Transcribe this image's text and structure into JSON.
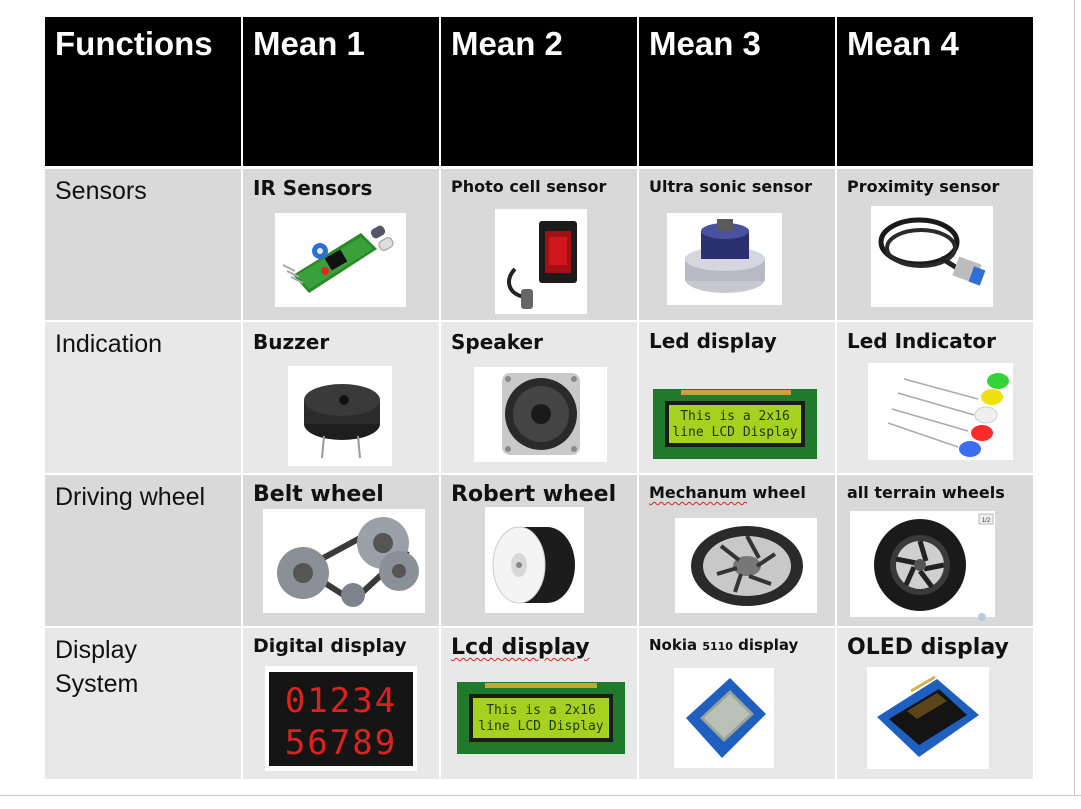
{
  "header": [
    "Functions",
    "Mean 1",
    "Mean 2",
    "Mean 3",
    "Mean 4"
  ],
  "rows": [
    {
      "function": "Sensors",
      "means": [
        {
          "label": "IR Sensors",
          "image": "ir-sensor-module"
        },
        {
          "label": "Photo cell sensor",
          "image": "photo-cell-sensor"
        },
        {
          "label": "Ultra sonic sensor",
          "image": "ultrasonic-transducer"
        },
        {
          "label": "Proximity sensor",
          "image": "proximity-sensor"
        }
      ]
    },
    {
      "function": "Indication",
      "means": [
        {
          "label": "Buzzer",
          "image": "buzzer"
        },
        {
          "label": "Speaker",
          "image": "speaker"
        },
        {
          "label": "Led display",
          "image": "lcd-display-module"
        },
        {
          "label": "Led Indicator",
          "image": "led-indicators"
        }
      ]
    },
    {
      "function": "Driving wheel",
      "means": [
        {
          "label": "Belt wheel",
          "image": "belt-pulley"
        },
        {
          "label": "Robert wheel",
          "image": "robot-wheel"
        },
        {
          "label": "Mechanum wheel",
          "image": "mecanum-wheel"
        },
        {
          "label": "all terrain wheels",
          "image": "all-terrain-wheel"
        }
      ]
    },
    {
      "function": "Display System",
      "function_lines": [
        "Display",
        "System"
      ],
      "means": [
        {
          "label": "Digital display",
          "image": "seven-segment-display"
        },
        {
          "label": "Lcd display",
          "image": "lcd-display-module"
        },
        {
          "label": "Nokia 5110 display",
          "label_parts": [
            "Nokia ",
            "5110",
            " display"
          ],
          "image": "nokia-5110-display"
        },
        {
          "label": "OLED display",
          "image": "oled-display"
        }
      ]
    }
  ],
  "lcd_text": [
    "This is a 2x16",
    "line LCD Display"
  ],
  "seg_digits": [
    "01234",
    "56789"
  ],
  "badge": "1/2",
  "colors": {
    "header_bg": "#000000",
    "row_bg_a": "#d9d9d9",
    "row_bg_b": "#e8e8e8",
    "text": "#111111",
    "grid": "#ffffff"
  }
}
